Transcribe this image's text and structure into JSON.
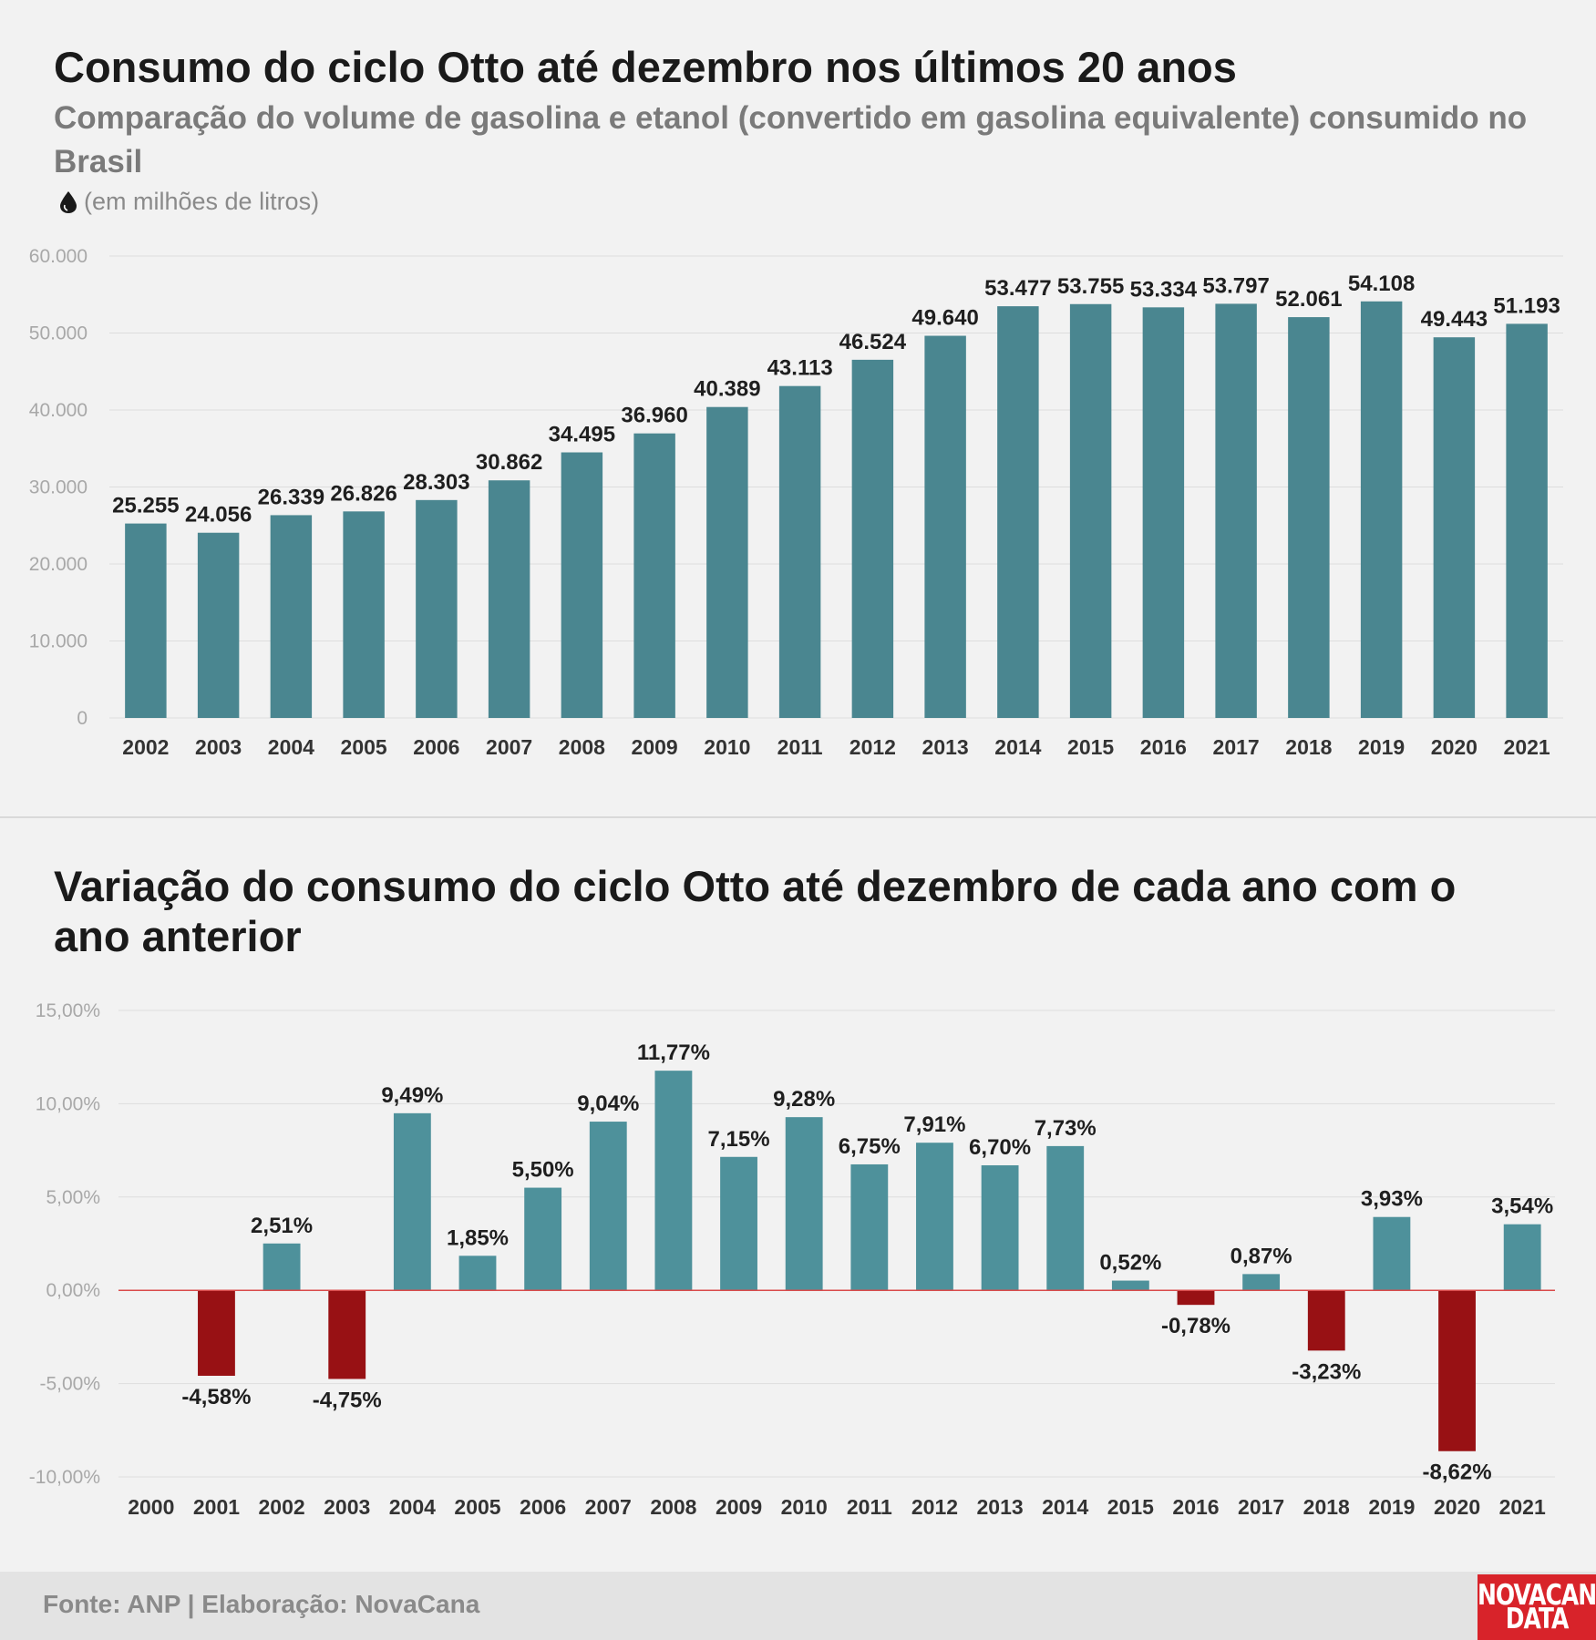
{
  "header": {
    "title": "Consumo do ciclo Otto até dezembro nos últimos 20 anos",
    "subtitle": "Comparação do volume de gasolina e etanol (convertido em gasolina equivalente) consumido no Brasil",
    "unit": "(em milhões de litros)",
    "unit_icon": "drop-icon"
  },
  "section2": {
    "title": "Variação do consumo do ciclo Otto até dezembro de cada ano com o ano anterior"
  },
  "footer": {
    "source": "Fonte: ANP | Elaboração: NovaCana",
    "logo_line1": "NOVACANA",
    "logo_line2": "DATA"
  },
  "chart_data": [
    {
      "type": "bar",
      "categories": [
        "2002",
        "2003",
        "2004",
        "2005",
        "2006",
        "2007",
        "2008",
        "2009",
        "2010",
        "2011",
        "2012",
        "2013",
        "2014",
        "2015",
        "2016",
        "2017",
        "2018",
        "2019",
        "2020",
        "2021"
      ],
      "values": [
        25255,
        24056,
        26339,
        26826,
        28303,
        30862,
        34495,
        36960,
        40389,
        43113,
        46524,
        49640,
        53477,
        53755,
        53334,
        53797,
        52061,
        54108,
        49443,
        51193
      ],
      "data_labels": [
        "25.255",
        "24.056",
        "26.339",
        "26.826",
        "28.303",
        "30.862",
        "34.495",
        "36.960",
        "40.389",
        "43.113",
        "46.524",
        "49.640",
        "53.477",
        "53.755",
        "53.334",
        "53.797",
        "52.061",
        "54.108",
        "49.443",
        "51.193"
      ],
      "yticks": [
        0,
        10000,
        20000,
        30000,
        40000,
        50000,
        60000
      ],
      "ytick_labels": [
        "0",
        "10.000",
        "20.000",
        "30.000",
        "40.000",
        "50.000",
        "60.000"
      ],
      "ylim": [
        0,
        60000
      ],
      "grid": true,
      "color": "#4a8690"
    },
    {
      "type": "bar",
      "categories": [
        "2000",
        "2001",
        "2002",
        "2003",
        "2004",
        "2005",
        "2006",
        "2007",
        "2008",
        "2009",
        "2010",
        "2011",
        "2012",
        "2013",
        "2014",
        "2015",
        "2016",
        "2017",
        "2018",
        "2019",
        "2020",
        "2021"
      ],
      "values": [
        null,
        -4.58,
        2.51,
        -4.75,
        9.49,
        1.85,
        5.5,
        9.04,
        11.77,
        7.15,
        9.28,
        6.75,
        7.91,
        6.7,
        7.73,
        0.52,
        -0.78,
        0.87,
        -3.23,
        3.93,
        -8.62,
        3.54
      ],
      "data_labels": [
        "",
        "-4,58%",
        "2,51%",
        "-4,75%",
        "9,49%",
        "1,85%",
        "5,50%",
        "9,04%",
        "11,77%",
        "7,15%",
        "9,28%",
        "6,75%",
        "7,91%",
        "6,70%",
        "7,73%",
        "0,52%",
        "-0,78%",
        "0,87%",
        "-3,23%",
        "3,93%",
        "-8,62%",
        "3,54%"
      ],
      "yticks": [
        -10,
        -5,
        0,
        5,
        10,
        15
      ],
      "ytick_labels": [
        "-10,00%",
        "-5,00%",
        "0,00%",
        "5,00%",
        "10,00%",
        "15,00%"
      ],
      "ylim": [
        -10,
        15
      ],
      "grid": true,
      "positive_color": "#4e919b",
      "negative_color": "#981114",
      "zero_line_color": "#d94b4b"
    }
  ]
}
